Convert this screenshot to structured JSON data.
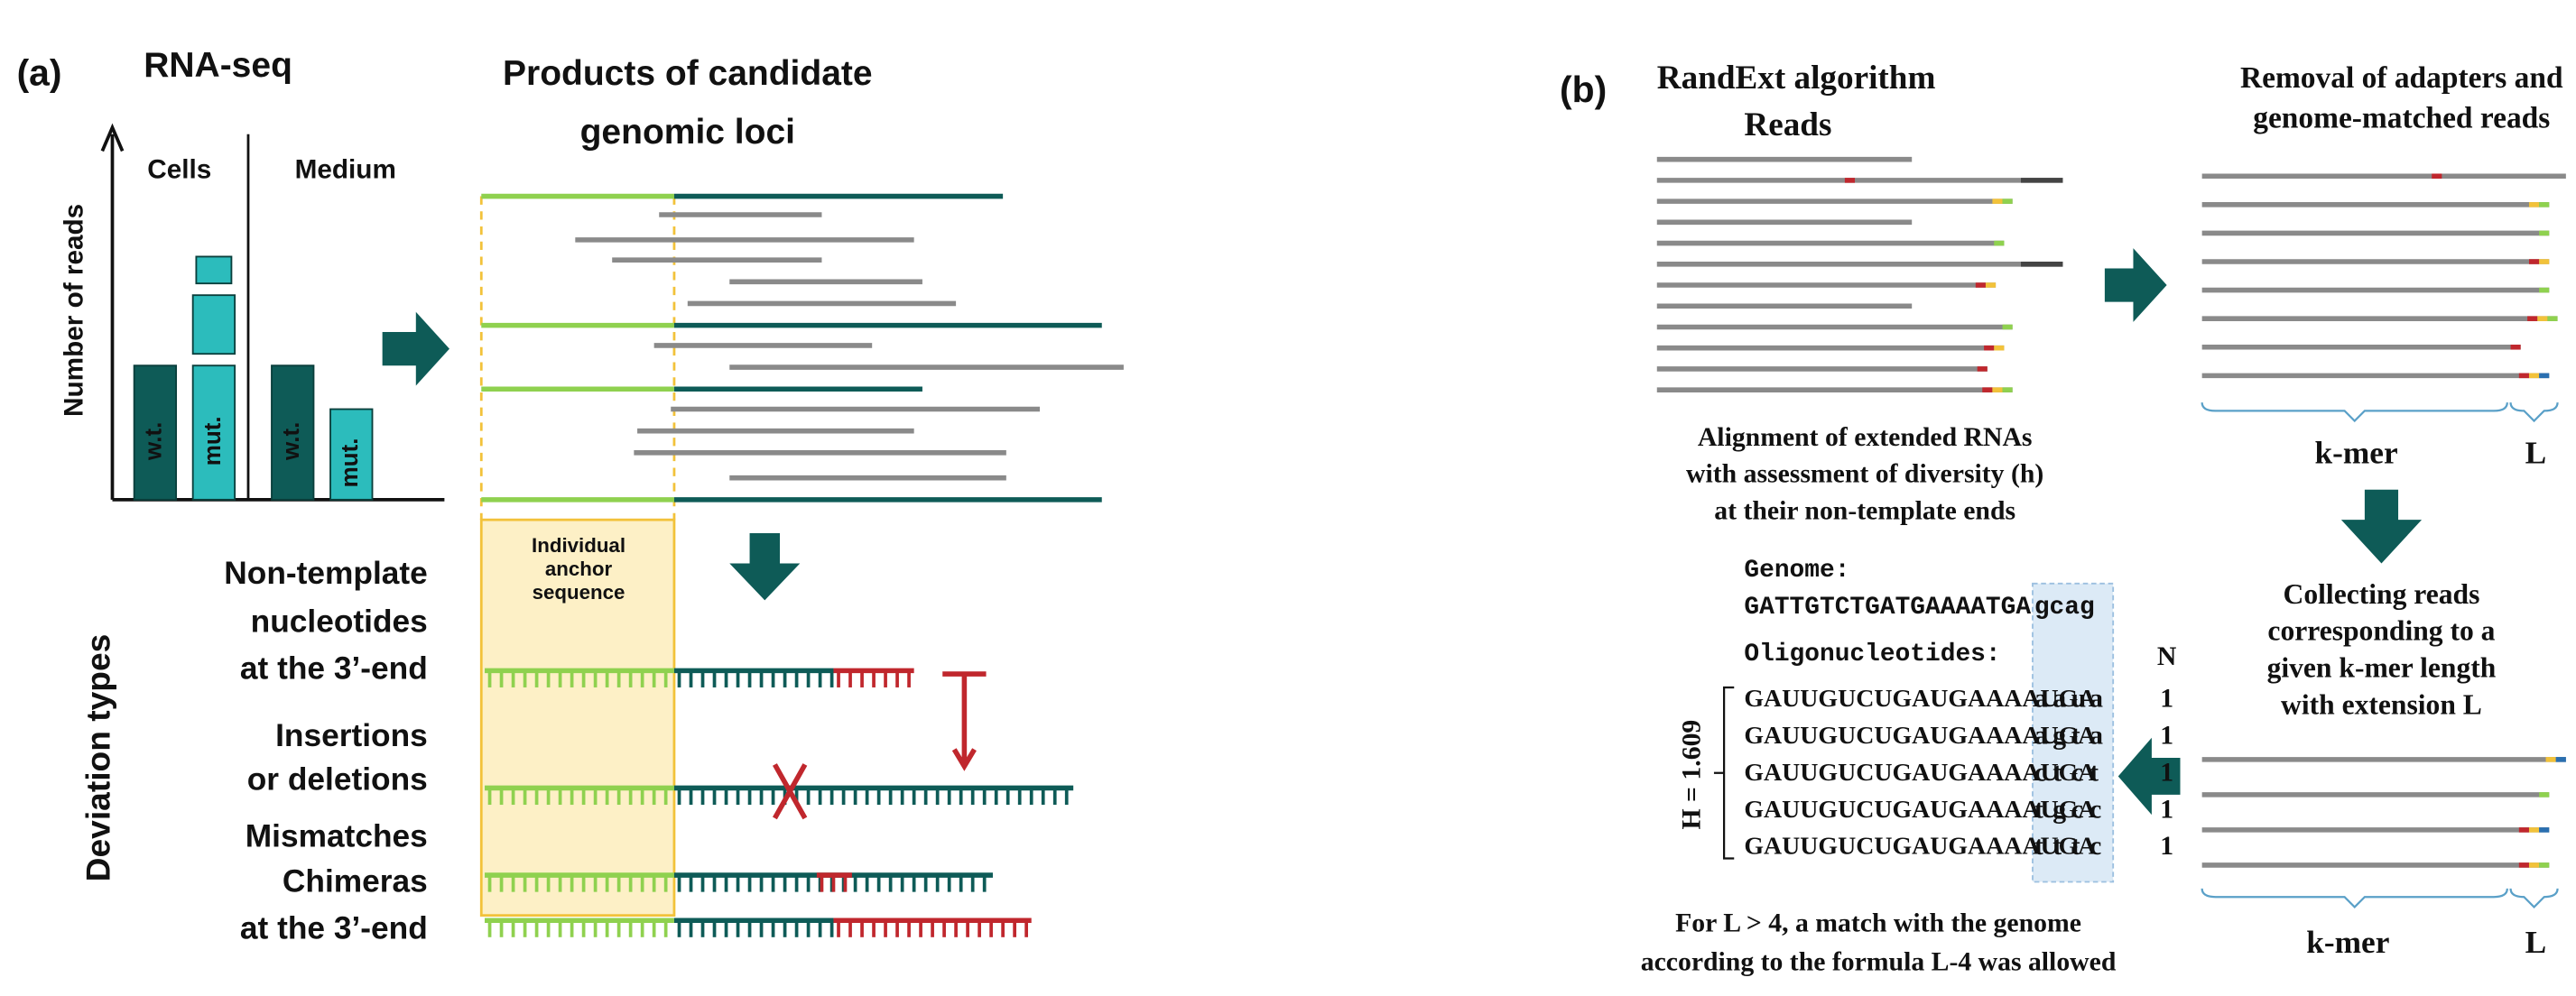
{
  "panel_a": {
    "label": "(a)",
    "rnaseq": {
      "title": "RNA-seq",
      "y_axis": "Number of reads",
      "groups": [
        "Cells",
        "Medium"
      ],
      "bars": [
        "w.t.",
        "mut.",
        "w.t.",
        "mut."
      ]
    },
    "products": {
      "title": [
        "Products of candidate",
        "genomic loci"
      ],
      "anchor": [
        "Individual",
        "anchor",
        "sequence"
      ]
    },
    "deviation": {
      "title": "Deviation types",
      "types": [
        [
          "Non-template",
          "nucleotides",
          "at the 3’-end"
        ],
        [
          "Insertions",
          "or deletions"
        ],
        [
          "Mismatches"
        ],
        [
          "Chimeras",
          "at the 3’-end"
        ]
      ]
    }
  },
  "panel_b": {
    "label": "(b)",
    "title": "RandExt algorithm",
    "reads": "Reads",
    "removal": [
      "Removal of adapters and",
      "genome-matched reads"
    ],
    "kmer": "k-mer",
    "L": "L",
    "collecting": [
      "Collecting reads",
      "corresponding to a",
      "given k-mer length",
      "with extension L"
    ],
    "alignment": [
      "Alignment of extended RNAs",
      "with assessment of diversity (h)",
      "at their non-template ends"
    ],
    "genome_label": "Genome:",
    "genome_seq": [
      "GATTGTCTGATGAAAATGA",
      "gcag"
    ],
    "oligo_label": "Oligonucleotides:",
    "n_label": "N",
    "entropy": "H = 1.609",
    "oligos": [
      {
        "base": "GAUUGUCUGAUGAAAAUGA",
        "tail": [
          "a",
          "a",
          "u",
          "a"
        ],
        "n": 1
      },
      {
        "base": "GAUUGUCUGAUGAAAAUGA",
        "tail": [
          "a",
          "g",
          "t",
          "a"
        ],
        "n": 1
      },
      {
        "base": "GAUUGUCUGAUGAAAAUGA",
        "tail": [
          "c",
          "t",
          "c",
          "t"
        ],
        "n": 1
      },
      {
        "base": "GAUUGUCUGAUGAAAAUGA",
        "tail": [
          "t",
          "g",
          "c",
          "c"
        ],
        "n": 1
      },
      {
        "base": "GAUUGUCUGAUGAAAAUGA",
        "tail": [
          "t",
          "t",
          "t",
          "c"
        ],
        "n": 1
      }
    ],
    "note": [
      "For L > 4, a match with the genome",
      "according to the formula L-4 was allowed"
    ]
  }
}
